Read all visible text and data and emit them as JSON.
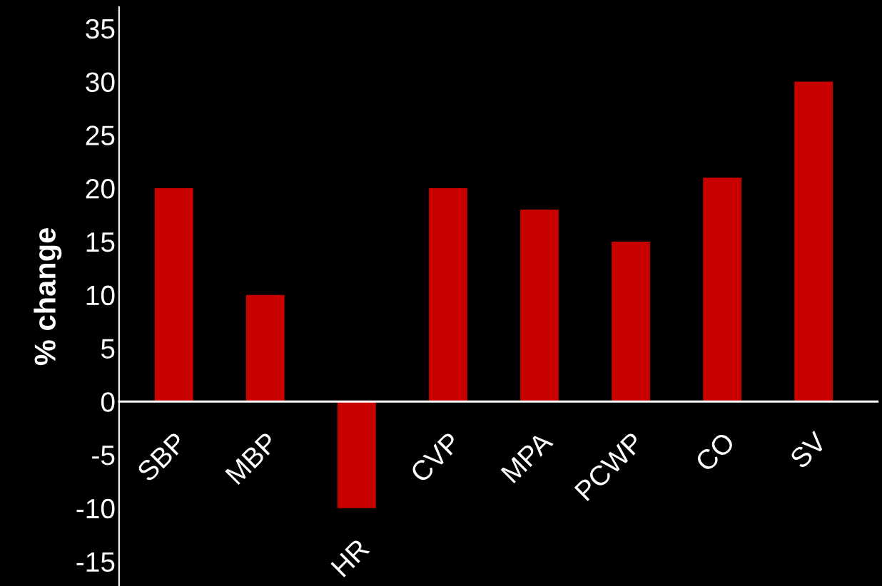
{
  "chart_data": {
    "type": "bar",
    "ylabel": "% change",
    "categories": [
      "SBP",
      "MBP",
      "HR",
      "CVP",
      "MPA",
      "PCWP",
      "CO",
      "SV"
    ],
    "values": [
      20,
      10,
      -10,
      20,
      18,
      15,
      21,
      30
    ],
    "color": "#c80000",
    "ylim": [
      -17.3,
      37
    ],
    "yticks": [
      -15,
      -10,
      -5,
      0,
      5,
      10,
      15,
      20,
      25,
      30,
      35
    ],
    "grid": false,
    "legend": false
  }
}
